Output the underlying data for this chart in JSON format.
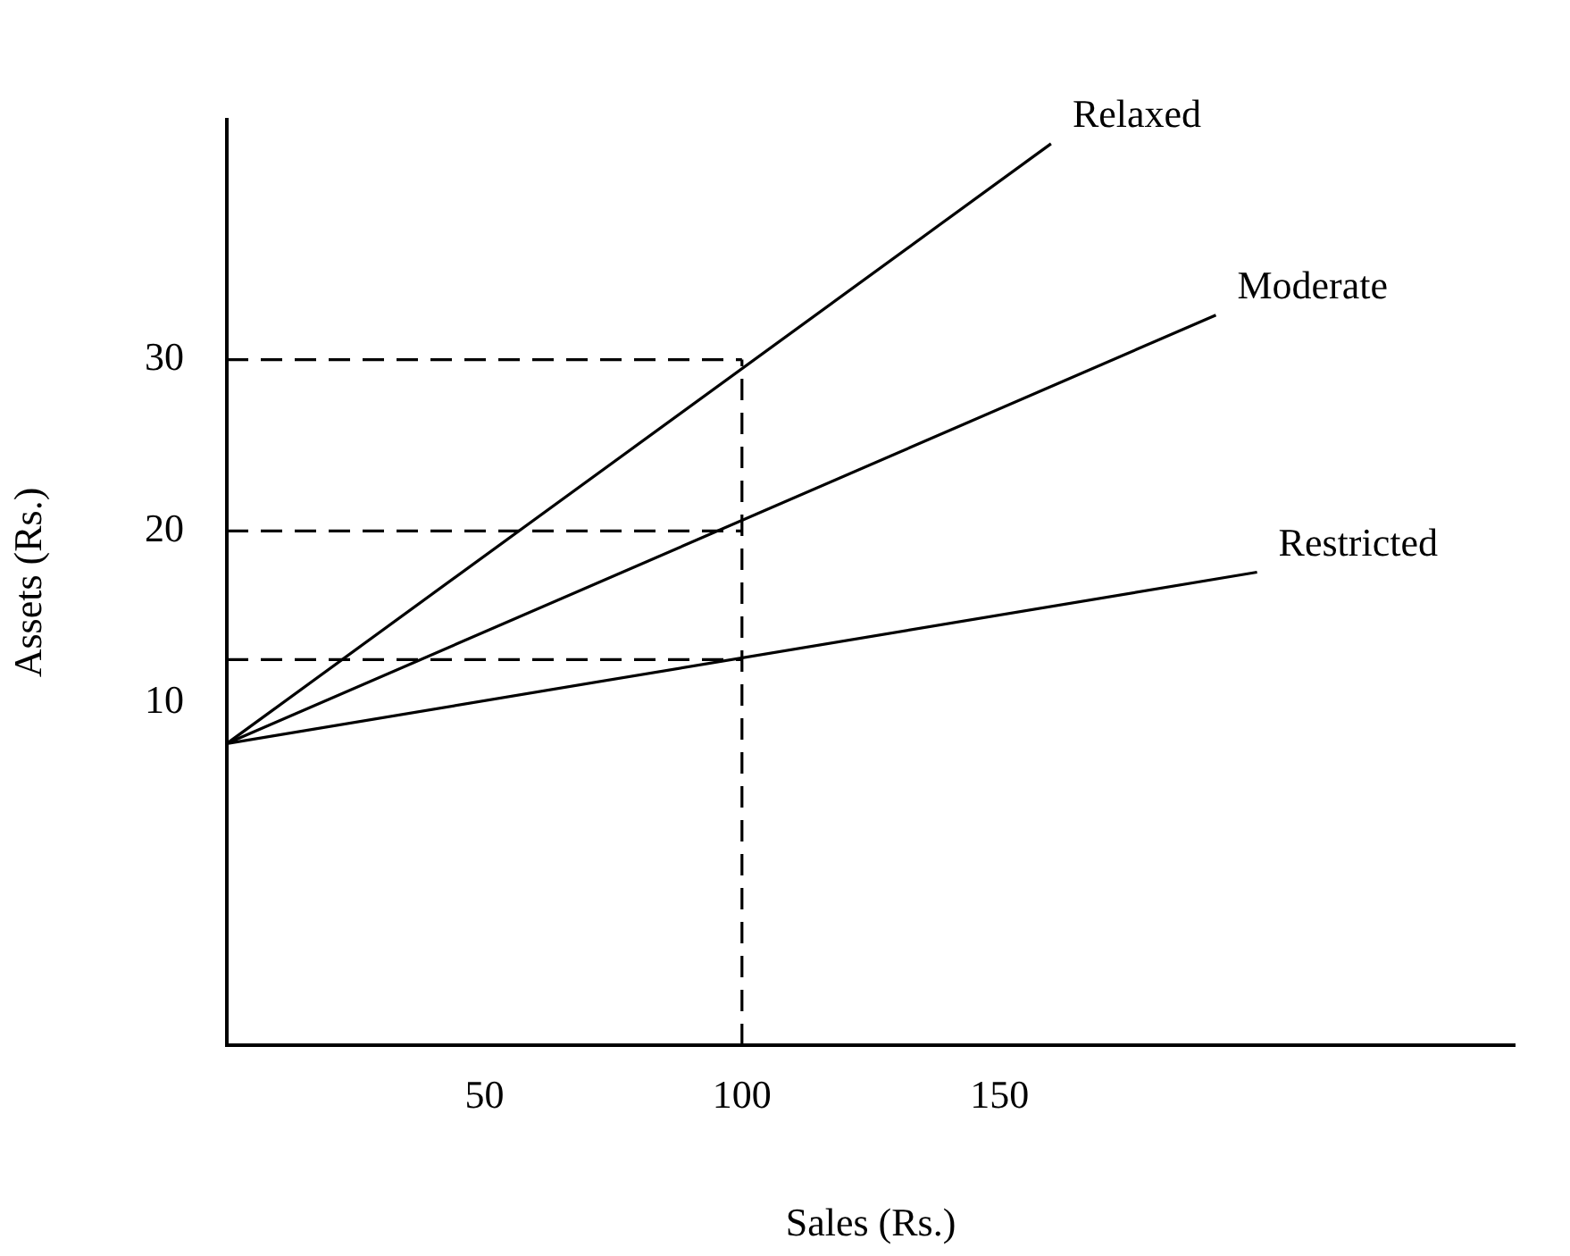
{
  "chart_data": {
    "type": "line",
    "xlabel": "Sales (Rs.)",
    "ylabel": "Assets (Rs.)",
    "xlim": [
      0,
      250
    ],
    "ylim": [
      -10,
      44
    ],
    "xticks": [
      50,
      100,
      150
    ],
    "yticks": [
      10,
      20,
      30
    ],
    "grid": false,
    "marker": "none",
    "series": [
      {
        "name": "Relaxed",
        "color": "#000000",
        "x": [
          0,
          160
        ],
        "values": [
          7.6,
          42.6
        ]
      },
      {
        "name": "Moderate",
        "color": "#000000",
        "x": [
          0,
          192
        ],
        "values": [
          7.6,
          32.6
        ]
      },
      {
        "name": "Restricted",
        "color": "#000000",
        "x": [
          0,
          200
        ],
        "values": [
          7.6,
          17.6
        ]
      },
      {
        "color": "#000000",
        "line_style": "dashed",
        "x": [
          0,
          100
        ],
        "values": [
          30,
          30
        ]
      },
      {
        "color": "#000000",
        "line_style": "dashed",
        "x": [
          0,
          100
        ],
        "values": [
          20,
          20
        ]
      },
      {
        "color": "#000000",
        "line_style": "dashed",
        "x": [
          0,
          100
        ],
        "values": [
          12.5,
          12.5
        ]
      },
      {
        "color": "#000000",
        "line_style": "dashed",
        "x": [
          100,
          100
        ],
        "values": [
          -10,
          30
        ]
      }
    ]
  }
}
